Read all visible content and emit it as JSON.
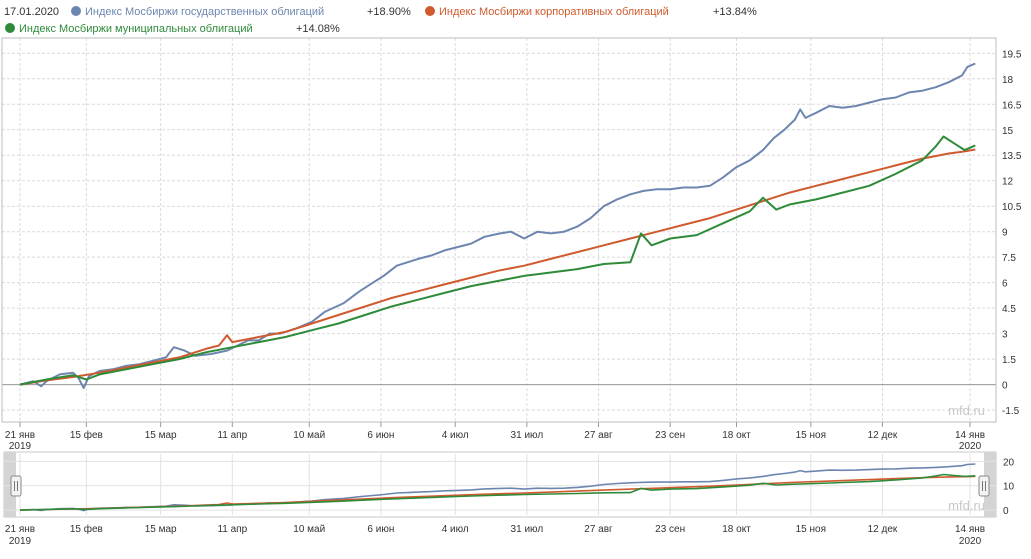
{
  "chart_data": {
    "type": "line",
    "date_label": "17.01.2020",
    "watermark": "mfd.ru",
    "x_ticks": [
      {
        "label": "21 янв",
        "year": "2019",
        "t": 0
      },
      {
        "label": "15 фев",
        "year": "",
        "t": 25
      },
      {
        "label": "15 мар",
        "year": "",
        "t": 53
      },
      {
        "label": "11 апр",
        "year": "",
        "t": 80
      },
      {
        "label": "10 май",
        "year": "",
        "t": 109
      },
      {
        "label": "6 июн",
        "year": "",
        "t": 136
      },
      {
        "label": "4 июл",
        "year": "",
        "t": 164
      },
      {
        "label": "31 июл",
        "year": "",
        "t": 191
      },
      {
        "label": "27 авг",
        "year": "",
        "t": 218
      },
      {
        "label": "23 сен",
        "year": "",
        "t": 245
      },
      {
        "label": "18 окт",
        "year": "",
        "t": 270
      },
      {
        "label": "15 ноя",
        "year": "",
        "t": 298
      },
      {
        "label": "12 дек",
        "year": "",
        "t": 325
      },
      {
        "label": "14 янв",
        "year": "2020",
        "t": 358
      }
    ],
    "x_range": [
      0,
      361
    ],
    "ylim": [
      -2.2,
      20.4
    ],
    "y_ticks": [
      "-1.5",
      "0",
      "1.5",
      "3",
      "4.5",
      "6",
      "7.5",
      "9",
      "10.5",
      "12",
      "13.5",
      "15",
      "16.5",
      "18",
      "19.5"
    ],
    "navigator": {
      "ylim": [
        -2,
        23
      ],
      "y_ticks": [
        "0",
        "10",
        "20"
      ]
    },
    "series": [
      {
        "name": "Индекс Мосбиржи государственных облигаций",
        "change": "+18.90%",
        "color": "#6d86b0",
        "points": [
          [
            0,
            0.0
          ],
          [
            5,
            0.2
          ],
          [
            8,
            -0.1
          ],
          [
            10,
            0.2
          ],
          [
            15,
            0.6
          ],
          [
            20,
            0.7
          ],
          [
            22,
            0.4
          ],
          [
            24,
            -0.2
          ],
          [
            26,
            0.5
          ],
          [
            30,
            0.8
          ],
          [
            35,
            0.9
          ],
          [
            40,
            1.1
          ],
          [
            45,
            1.2
          ],
          [
            50,
            1.4
          ],
          [
            55,
            1.6
          ],
          [
            58,
            2.2
          ],
          [
            62,
            2.0
          ],
          [
            66,
            1.7
          ],
          [
            72,
            1.8
          ],
          [
            78,
            2.0
          ],
          [
            82,
            2.3
          ],
          [
            86,
            2.6
          ],
          [
            90,
            2.6
          ],
          [
            94,
            3.0
          ],
          [
            98,
            3.0
          ],
          [
            104,
            3.3
          ],
          [
            110,
            3.7
          ],
          [
            115,
            4.3
          ],
          [
            122,
            4.8
          ],
          [
            128,
            5.5
          ],
          [
            133,
            6.0
          ],
          [
            137,
            6.4
          ],
          [
            142,
            7.0
          ],
          [
            146,
            7.2
          ],
          [
            150,
            7.4
          ],
          [
            155,
            7.6
          ],
          [
            160,
            7.9
          ],
          [
            165,
            8.1
          ],
          [
            170,
            8.3
          ],
          [
            175,
            8.7
          ],
          [
            181,
            8.9
          ],
          [
            185,
            9.0
          ],
          [
            190,
            8.6
          ],
          [
            195,
            9.0
          ],
          [
            200,
            8.9
          ],
          [
            205,
            9.0
          ],
          [
            210,
            9.3
          ],
          [
            215,
            9.8
          ],
          [
            220,
            10.5
          ],
          [
            225,
            10.9
          ],
          [
            230,
            11.2
          ],
          [
            235,
            11.4
          ],
          [
            240,
            11.5
          ],
          [
            245,
            11.5
          ],
          [
            250,
            11.6
          ],
          [
            255,
            11.6
          ],
          [
            260,
            11.7
          ],
          [
            265,
            12.2
          ],
          [
            270,
            12.8
          ],
          [
            275,
            13.2
          ],
          [
            280,
            13.8
          ],
          [
            284,
            14.5
          ],
          [
            288,
            15.0
          ],
          [
            292,
            15.6
          ],
          [
            294,
            16.2
          ],
          [
            296,
            15.7
          ],
          [
            300,
            16.0
          ],
          [
            305,
            16.4
          ],
          [
            310,
            16.3
          ],
          [
            315,
            16.4
          ],
          [
            320,
            16.6
          ],
          [
            325,
            16.8
          ],
          [
            330,
            16.9
          ],
          [
            335,
            17.2
          ],
          [
            340,
            17.3
          ],
          [
            345,
            17.5
          ],
          [
            350,
            17.8
          ],
          [
            355,
            18.2
          ],
          [
            357,
            18.7
          ],
          [
            360,
            18.9
          ]
        ]
      },
      {
        "name": "Индекс Мосбиржи корпоративных облигаций",
        "change": "+13.84%",
        "color": "#cf5a2e",
        "points": [
          [
            0,
            0.0
          ],
          [
            10,
            0.25
          ],
          [
            20,
            0.45
          ],
          [
            30,
            0.7
          ],
          [
            40,
            1.0
          ],
          [
            50,
            1.3
          ],
          [
            60,
            1.6
          ],
          [
            70,
            2.1
          ],
          [
            75,
            2.3
          ],
          [
            78,
            2.9
          ],
          [
            80,
            2.5
          ],
          [
            90,
            2.8
          ],
          [
            100,
            3.1
          ],
          [
            110,
            3.6
          ],
          [
            120,
            4.1
          ],
          [
            130,
            4.6
          ],
          [
            140,
            5.1
          ],
          [
            150,
            5.5
          ],
          [
            160,
            5.9
          ],
          [
            170,
            6.3
          ],
          [
            180,
            6.7
          ],
          [
            190,
            7.0
          ],
          [
            200,
            7.4
          ],
          [
            210,
            7.8
          ],
          [
            220,
            8.2
          ],
          [
            230,
            8.6
          ],
          [
            240,
            9.0
          ],
          [
            250,
            9.4
          ],
          [
            260,
            9.8
          ],
          [
            270,
            10.3
          ],
          [
            280,
            10.8
          ],
          [
            290,
            11.3
          ],
          [
            300,
            11.7
          ],
          [
            310,
            12.1
          ],
          [
            320,
            12.5
          ],
          [
            330,
            12.9
          ],
          [
            340,
            13.3
          ],
          [
            350,
            13.6
          ],
          [
            355,
            13.7
          ],
          [
            360,
            13.84
          ]
        ]
      },
      {
        "name": "Индекс Мосбиржи муниципальных облигаций",
        "change": "+14.08%",
        "color": "#2e8b3a",
        "points": [
          [
            0,
            0.0
          ],
          [
            10,
            0.3
          ],
          [
            20,
            0.55
          ],
          [
            25,
            0.3
          ],
          [
            30,
            0.6
          ],
          [
            40,
            0.9
          ],
          [
            50,
            1.2
          ],
          [
            60,
            1.5
          ],
          [
            70,
            1.9
          ],
          [
            80,
            2.2
          ],
          [
            90,
            2.5
          ],
          [
            100,
            2.8
          ],
          [
            110,
            3.2
          ],
          [
            120,
            3.6
          ],
          [
            130,
            4.1
          ],
          [
            140,
            4.6
          ],
          [
            150,
            5.0
          ],
          [
            160,
            5.4
          ],
          [
            170,
            5.8
          ],
          [
            180,
            6.1
          ],
          [
            190,
            6.4
          ],
          [
            200,
            6.6
          ],
          [
            210,
            6.8
          ],
          [
            220,
            7.1
          ],
          [
            230,
            7.2
          ],
          [
            234,
            8.9
          ],
          [
            238,
            8.2
          ],
          [
            245,
            8.6
          ],
          [
            255,
            8.8
          ],
          [
            265,
            9.5
          ],
          [
            275,
            10.2
          ],
          [
            280,
            11.0
          ],
          [
            285,
            10.3
          ],
          [
            290,
            10.6
          ],
          [
            300,
            10.9
          ],
          [
            310,
            11.3
          ],
          [
            320,
            11.7
          ],
          [
            330,
            12.4
          ],
          [
            340,
            13.2
          ],
          [
            345,
            14.0
          ],
          [
            348,
            14.6
          ],
          [
            352,
            14.2
          ],
          [
            356,
            13.8
          ],
          [
            360,
            14.08
          ]
        ]
      }
    ]
  }
}
